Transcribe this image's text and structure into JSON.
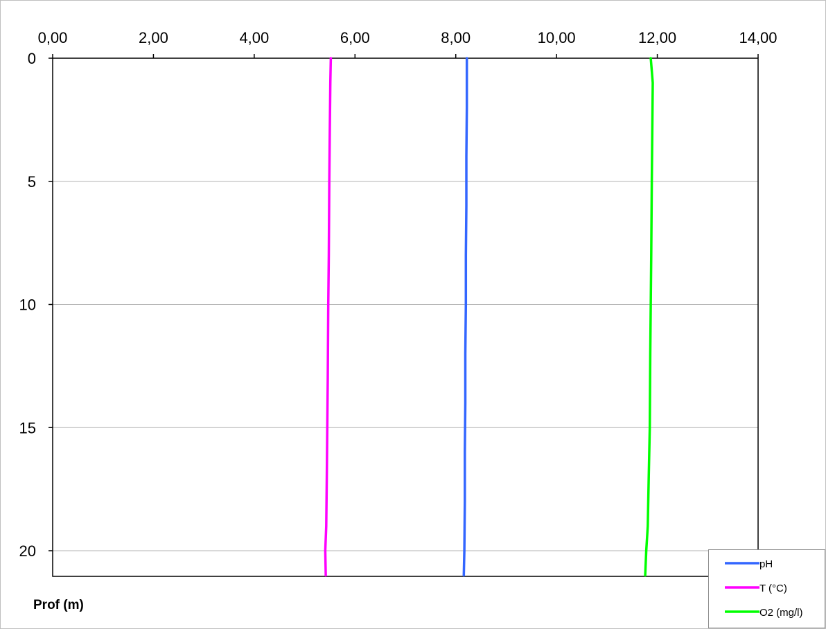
{
  "chart_data": {
    "type": "line",
    "title": "",
    "xlabel": "",
    "ylabel": "Prof (m)",
    "xlim": [
      0,
      14
    ],
    "ylim": [
      0,
      21
    ],
    "y_inverted": true,
    "x_axis_position": "top",
    "x_ticks": [
      0,
      2,
      4,
      6,
      8,
      10,
      12,
      14
    ],
    "x_tick_labels": [
      "0,00",
      "2,00",
      "4,00",
      "6,00",
      "8,00",
      "10,00",
      "12,00",
      "14,00"
    ],
    "y_ticks": [
      0,
      5,
      10,
      15,
      20
    ],
    "y_tick_labels": [
      "0",
      "5",
      "10",
      "15",
      "20"
    ],
    "grid": {
      "horizontal": true,
      "vertical": false
    },
    "legend": {
      "placement": "bottom-right"
    },
    "series": [
      {
        "name": "pH",
        "color": "#3366ff",
        "points": [
          {
            "x": 8.22,
            "y": 0
          },
          {
            "x": 8.22,
            "y": 2
          },
          {
            "x": 8.21,
            "y": 4
          },
          {
            "x": 8.21,
            "y": 6
          },
          {
            "x": 8.2,
            "y": 8
          },
          {
            "x": 8.2,
            "y": 10
          },
          {
            "x": 8.19,
            "y": 12
          },
          {
            "x": 8.19,
            "y": 14
          },
          {
            "x": 8.18,
            "y": 16
          },
          {
            "x": 8.18,
            "y": 18
          },
          {
            "x": 8.17,
            "y": 20
          },
          {
            "x": 8.16,
            "y": 21
          }
        ]
      },
      {
        "name": "T (°C)",
        "color": "#ff00ff",
        "points": [
          {
            "x": 5.52,
            "y": 0
          },
          {
            "x": 5.51,
            "y": 1
          },
          {
            "x": 5.5,
            "y": 3
          },
          {
            "x": 5.49,
            "y": 5
          },
          {
            "x": 5.48,
            "y": 8
          },
          {
            "x": 5.47,
            "y": 10
          },
          {
            "x": 5.46,
            "y": 13
          },
          {
            "x": 5.45,
            "y": 15
          },
          {
            "x": 5.44,
            "y": 17
          },
          {
            "x": 5.43,
            "y": 19
          },
          {
            "x": 5.41,
            "y": 20
          },
          {
            "x": 5.42,
            "y": 21
          }
        ]
      },
      {
        "name": "O2 (mg/l)",
        "color": "#00ff00",
        "points": [
          {
            "x": 11.87,
            "y": 0
          },
          {
            "x": 11.91,
            "y": 1
          },
          {
            "x": 11.9,
            "y": 3
          },
          {
            "x": 11.89,
            "y": 5
          },
          {
            "x": 11.88,
            "y": 8
          },
          {
            "x": 11.87,
            "y": 10
          },
          {
            "x": 11.86,
            "y": 12
          },
          {
            "x": 11.85,
            "y": 15
          },
          {
            "x": 11.83,
            "y": 17
          },
          {
            "x": 11.81,
            "y": 19
          },
          {
            "x": 11.78,
            "y": 20
          },
          {
            "x": 11.76,
            "y": 21
          }
        ]
      }
    ]
  }
}
